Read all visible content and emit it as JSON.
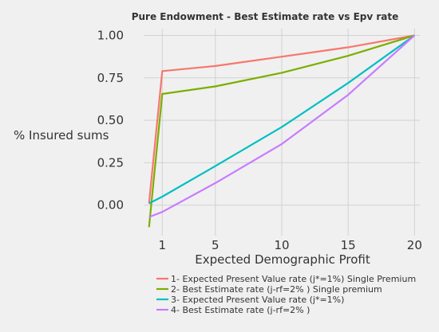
{
  "chart_data": {
    "type": "line",
    "title": "Pure Endowment - Best Estimate rate vs Epv rate",
    "xlabel": "Expected Demographic Profit",
    "ylabel": "% Insured sums",
    "xlim": [
      -0.4,
      20.4
    ],
    "ylim": [
      -0.18,
      1.04
    ],
    "x_ticks": [
      1,
      5,
      10,
      15,
      20
    ],
    "x_tick_labels": [
      "1",
      "5",
      "10",
      "15",
      "20"
    ],
    "y_ticks": [
      0.0,
      0.25,
      0.5,
      0.75,
      1.0
    ],
    "y_tick_labels": [
      "0.00",
      "0.25",
      "0.50",
      "0.75",
      "1.00"
    ],
    "grid": true,
    "legend_position": "bottom",
    "series": [
      {
        "name": "1- Expected Present Value rate (j*=1%) Single Premium",
        "color": "#f8766d",
        "x": [
          0,
          1,
          5,
          10,
          15,
          20
        ],
        "y": [
          0.01,
          0.79,
          0.82,
          0.875,
          0.93,
          1.0
        ]
      },
      {
        "name": "2- Best Estimate rate (j-rf=2% ) Single premium",
        "color": "#7cae00",
        "x": [
          0,
          1,
          5,
          10,
          15,
          20
        ],
        "y": [
          -0.13,
          0.655,
          0.7,
          0.78,
          0.88,
          1.0
        ]
      },
      {
        "name": "3- Expected Present Value rate (j*=1%)",
        "color": "#00bfc4",
        "x": [
          0,
          1,
          5,
          10,
          15,
          20
        ],
        "y": [
          0.01,
          0.05,
          0.23,
          0.46,
          0.72,
          1.0
        ]
      },
      {
        "name": "4- Best Estimate rate (j-rf=2% )",
        "color": "#c77cff",
        "x": [
          0,
          1,
          5,
          10,
          15,
          20
        ],
        "y": [
          -0.07,
          -0.04,
          0.13,
          0.36,
          0.65,
          1.0
        ]
      }
    ]
  }
}
